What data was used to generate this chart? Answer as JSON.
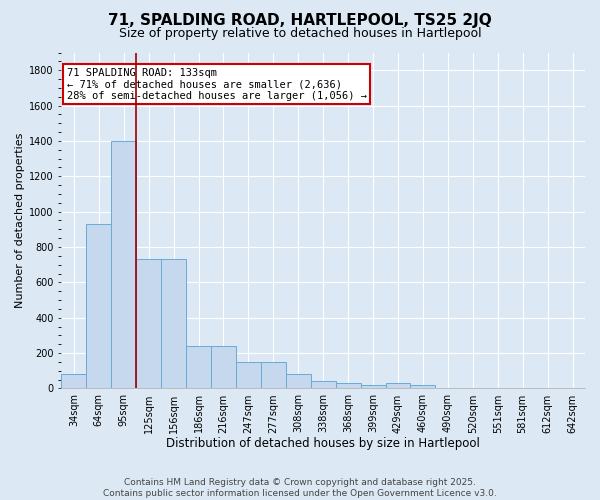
{
  "title": "71, SPALDING ROAD, HARTLEPOOL, TS25 2JQ",
  "subtitle": "Size of property relative to detached houses in Hartlepool",
  "xlabel": "Distribution of detached houses by size in Hartlepool",
  "ylabel": "Number of detached properties",
  "categories": [
    "34sqm",
    "64sqm",
    "95sqm",
    "125sqm",
    "156sqm",
    "186sqm",
    "216sqm",
    "247sqm",
    "277sqm",
    "308sqm",
    "338sqm",
    "368sqm",
    "399sqm",
    "429sqm",
    "460sqm",
    "490sqm",
    "520sqm",
    "551sqm",
    "581sqm",
    "612sqm",
    "642sqm"
  ],
  "values": [
    80,
    930,
    1400,
    730,
    730,
    240,
    240,
    150,
    150,
    80,
    40,
    30,
    20,
    30,
    20,
    0,
    0,
    0,
    0,
    0,
    0
  ],
  "bar_color": "#c5d8ee",
  "bar_edge_color": "#6aaad4",
  "vline_x": 2.5,
  "vline_color": "#990000",
  "annotation_text": "71 SPALDING ROAD: 133sqm\n← 71% of detached houses are smaller (2,636)\n28% of semi-detached houses are larger (1,056) →",
  "annotation_box_color": "#ffffff",
  "annotation_box_edge_color": "#cc0000",
  "ylim": [
    0,
    1900
  ],
  "yticks": [
    0,
    200,
    400,
    600,
    800,
    1000,
    1200,
    1400,
    1600,
    1800
  ],
  "bg_color": "#dce9f5",
  "plot_bg_color": "#dce9f5",
  "footer": "Contains HM Land Registry data © Crown copyright and database right 2025.\nContains public sector information licensed under the Open Government Licence v3.0.",
  "title_fontsize": 11,
  "subtitle_fontsize": 9,
  "xlabel_fontsize": 8.5,
  "ylabel_fontsize": 8,
  "tick_fontsize": 7,
  "footer_fontsize": 6.5,
  "annot_fontsize": 7.5
}
